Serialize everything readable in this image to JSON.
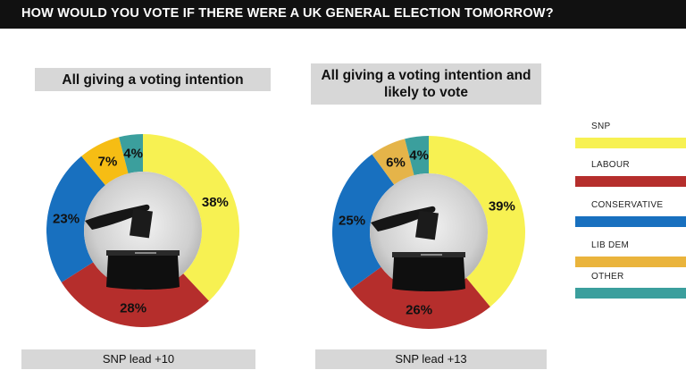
{
  "header": {
    "title": "HOW WOULD YOU VOTE IF THERE WERE A UK GENERAL ELECTION TOMORROW?"
  },
  "legend": [
    {
      "label": "SNP",
      "color": "#f7f152"
    },
    {
      "label": "LABOUR",
      "color": "#b52e2c"
    },
    {
      "label": "CONSERVATIVE",
      "color": "#1870bf"
    },
    {
      "label": "LIB DEM",
      "color": "#eab43c"
    },
    {
      "label": "OTHER",
      "color": "#3b9f9d"
    }
  ],
  "chart_data": [
    {
      "type": "pie",
      "variant": "donut",
      "title": "All giving a voting intention",
      "categories": [
        "SNP",
        "LABOUR",
        "CONSERVATIVE",
        "LIB DEM",
        "OTHER"
      ],
      "values": [
        38,
        28,
        23,
        7,
        4
      ],
      "labels": [
        "38%",
        "28%",
        "23%",
        "7%",
        "4%"
      ],
      "colors": [
        "#f7f152",
        "#b52e2c",
        "#1870bf",
        "#f6bd14",
        "#3b9f9d"
      ],
      "footer": "SNP lead +10"
    },
    {
      "type": "pie",
      "variant": "donut",
      "title": "All giving a voting intention and likely to vote",
      "categories": [
        "SNP",
        "LABOUR",
        "CONSERVATIVE",
        "LIB DEM",
        "OTHER"
      ],
      "values": [
        39,
        26,
        25,
        6,
        4
      ],
      "labels": [
        "39%",
        "26%",
        "25%",
        "6%",
        "4%"
      ],
      "colors": [
        "#f7f152",
        "#b52e2c",
        "#1870bf",
        "#e5b449",
        "#3b9f9d"
      ],
      "footer": "SNP lead +13"
    }
  ]
}
